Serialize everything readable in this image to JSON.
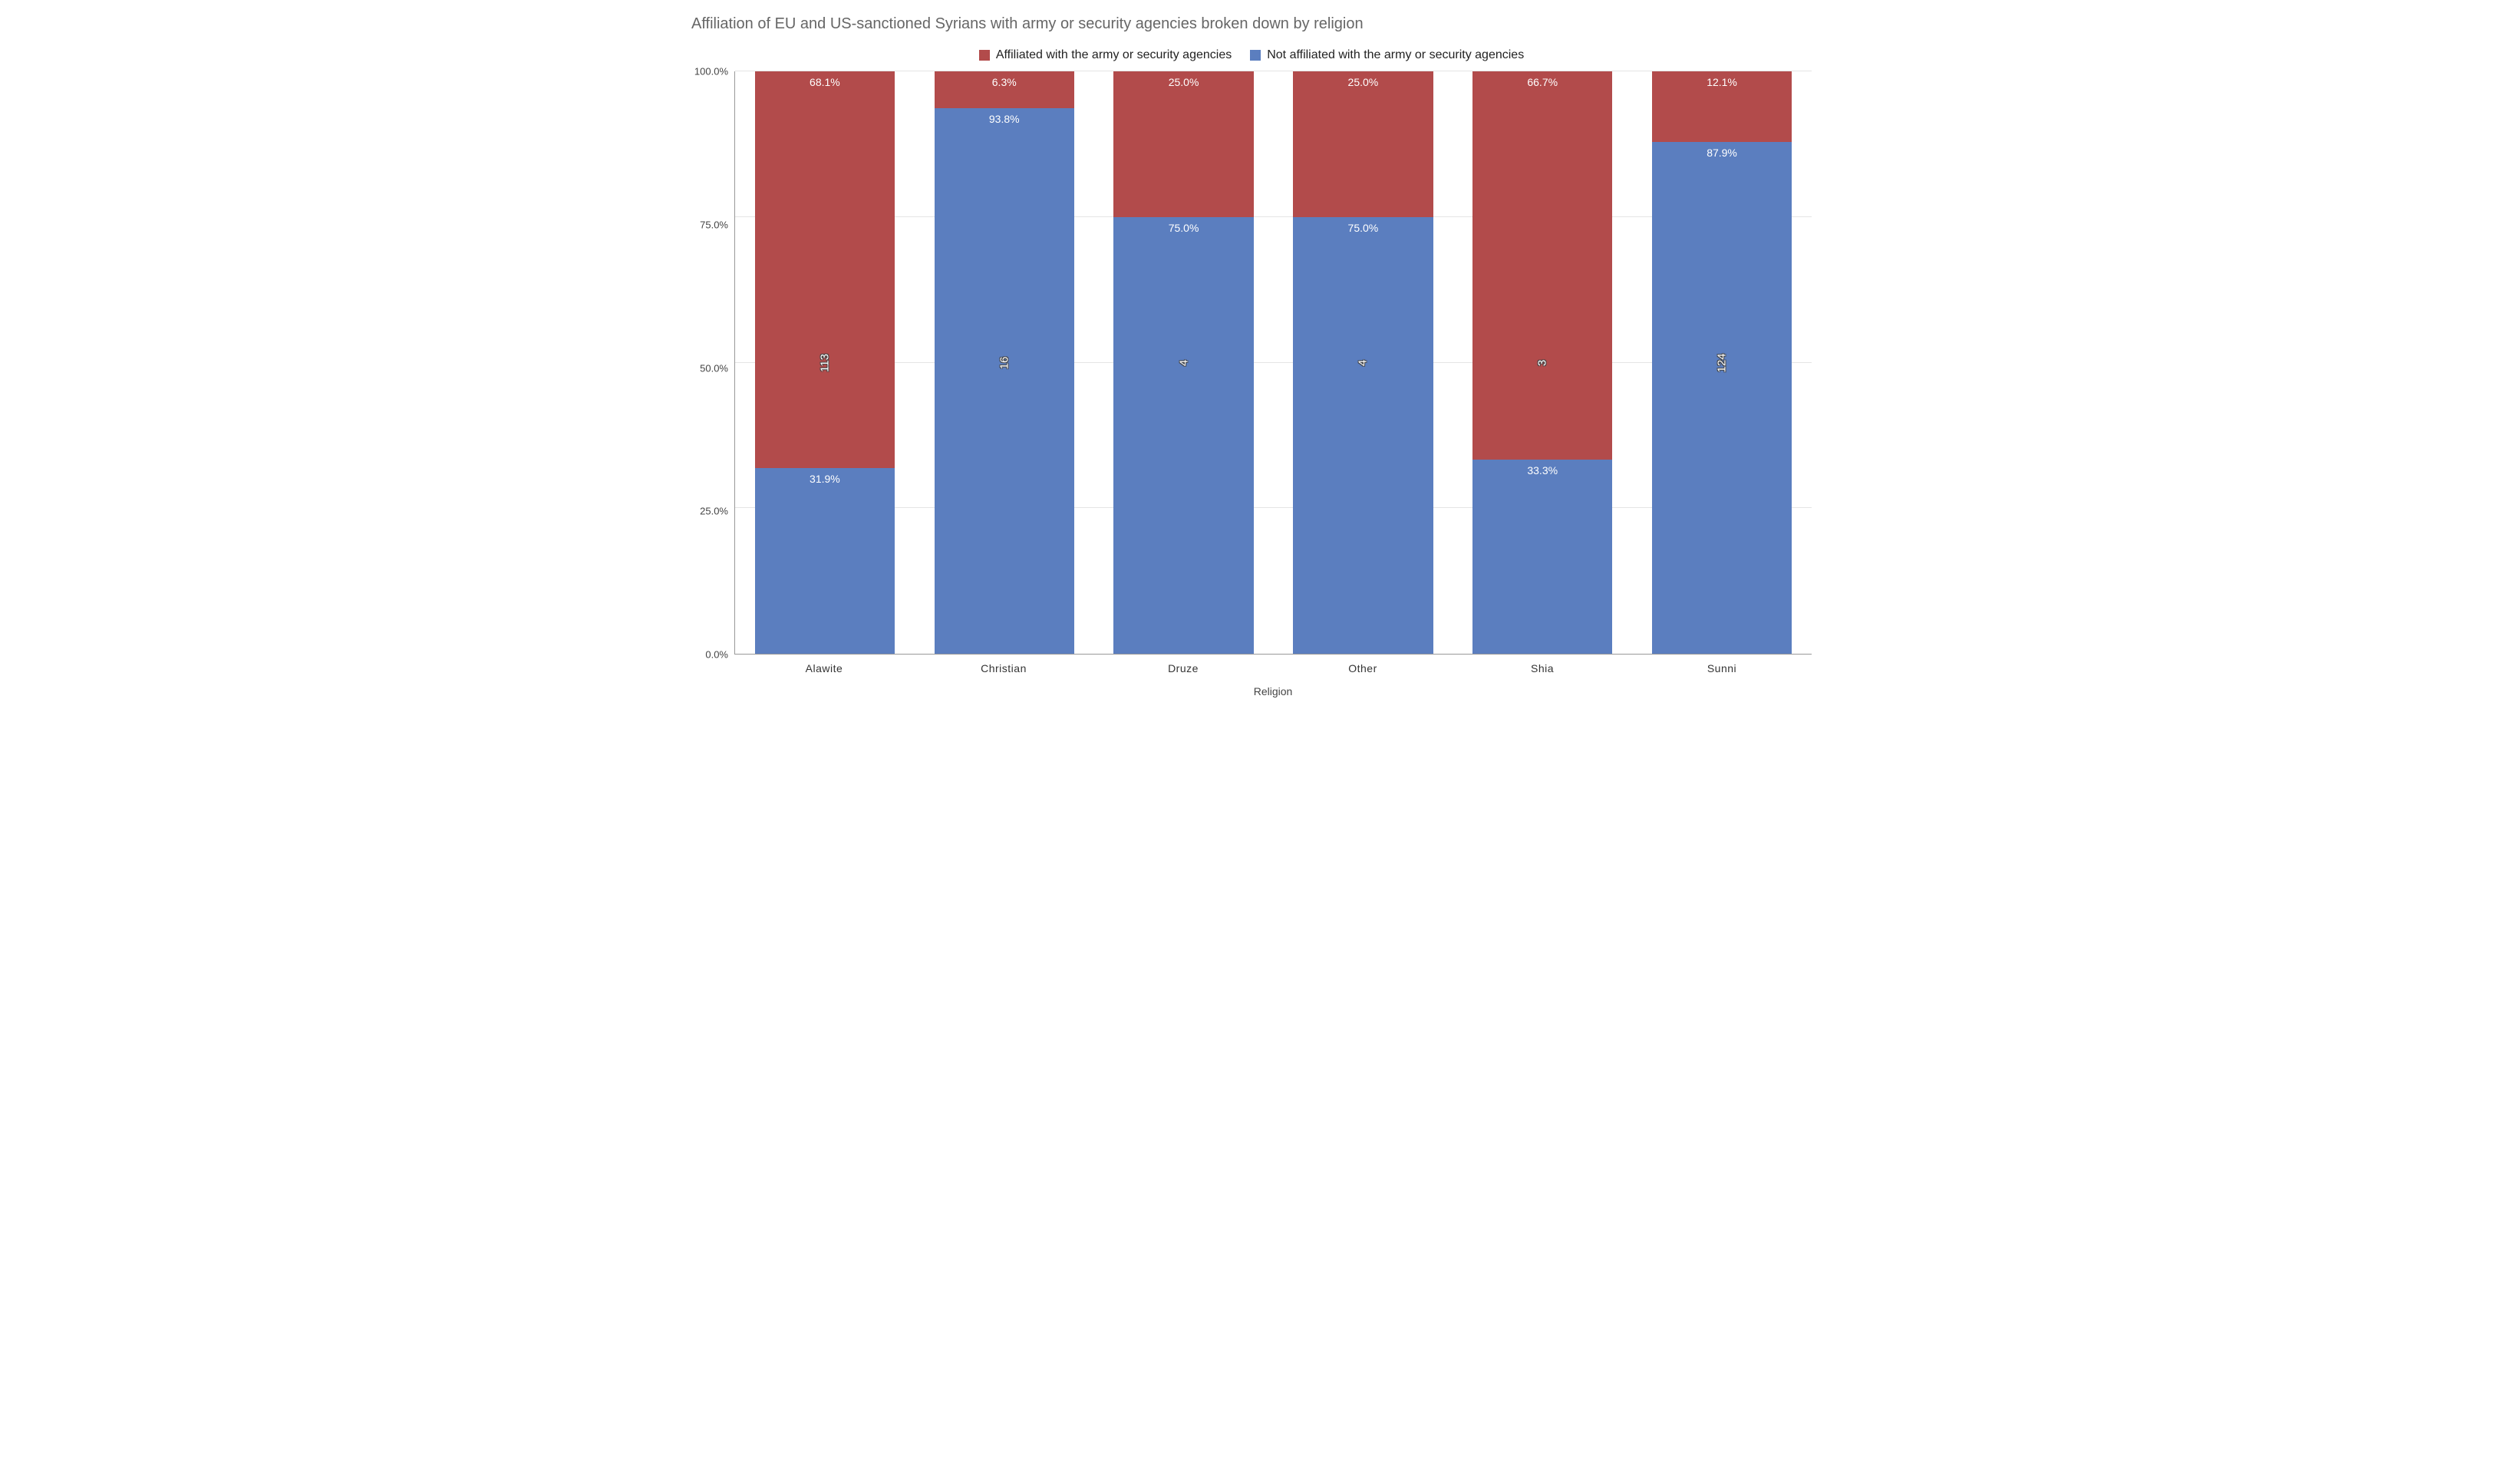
{
  "chart": {
    "type": "stacked-bar-100pct",
    "title": "Affiliation of EU and US-sanctioned Syrians with army or security agencies broken down by religion",
    "title_color": "#666666",
    "title_fontsize": 20,
    "background_color": "#ffffff",
    "grid_color": "#e5e5e5",
    "axis_color": "#999999",
    "label_fontsize": 14,
    "x_axis_title": "Religion",
    "y_ticks": [
      "100.0%",
      "75.0%",
      "50.0%",
      "25.0%",
      "0.0%"
    ],
    "ylim": [
      0,
      100
    ],
    "series": {
      "affiliated": {
        "label": "Affiliated with the army or security agencies",
        "color": "#b24b4b"
      },
      "not_affiliated": {
        "label": "Not affiliated with the army or security agencies",
        "color": "#5b7ebf"
      }
    },
    "categories": [
      {
        "name": "Alawite",
        "affiliated_pct": 68.1,
        "not_affiliated_pct": 31.9,
        "count": 113
      },
      {
        "name": "Christian",
        "affiliated_pct": 6.3,
        "not_affiliated_pct": 93.8,
        "count": 16
      },
      {
        "name": "Druze",
        "affiliated_pct": 25.0,
        "not_affiliated_pct": 75.0,
        "count": 4
      },
      {
        "name": "Other",
        "affiliated_pct": 25.0,
        "not_affiliated_pct": 75.0,
        "count": 4
      },
      {
        "name": "Shia",
        "affiliated_pct": 66.7,
        "not_affiliated_pct": 33.3,
        "count": 3
      },
      {
        "name": "Sunni",
        "affiliated_pct": 12.1,
        "not_affiliated_pct": 87.9,
        "count": 124
      }
    ],
    "bar_width_pct": 78,
    "data_label_color": "#ffffff"
  }
}
